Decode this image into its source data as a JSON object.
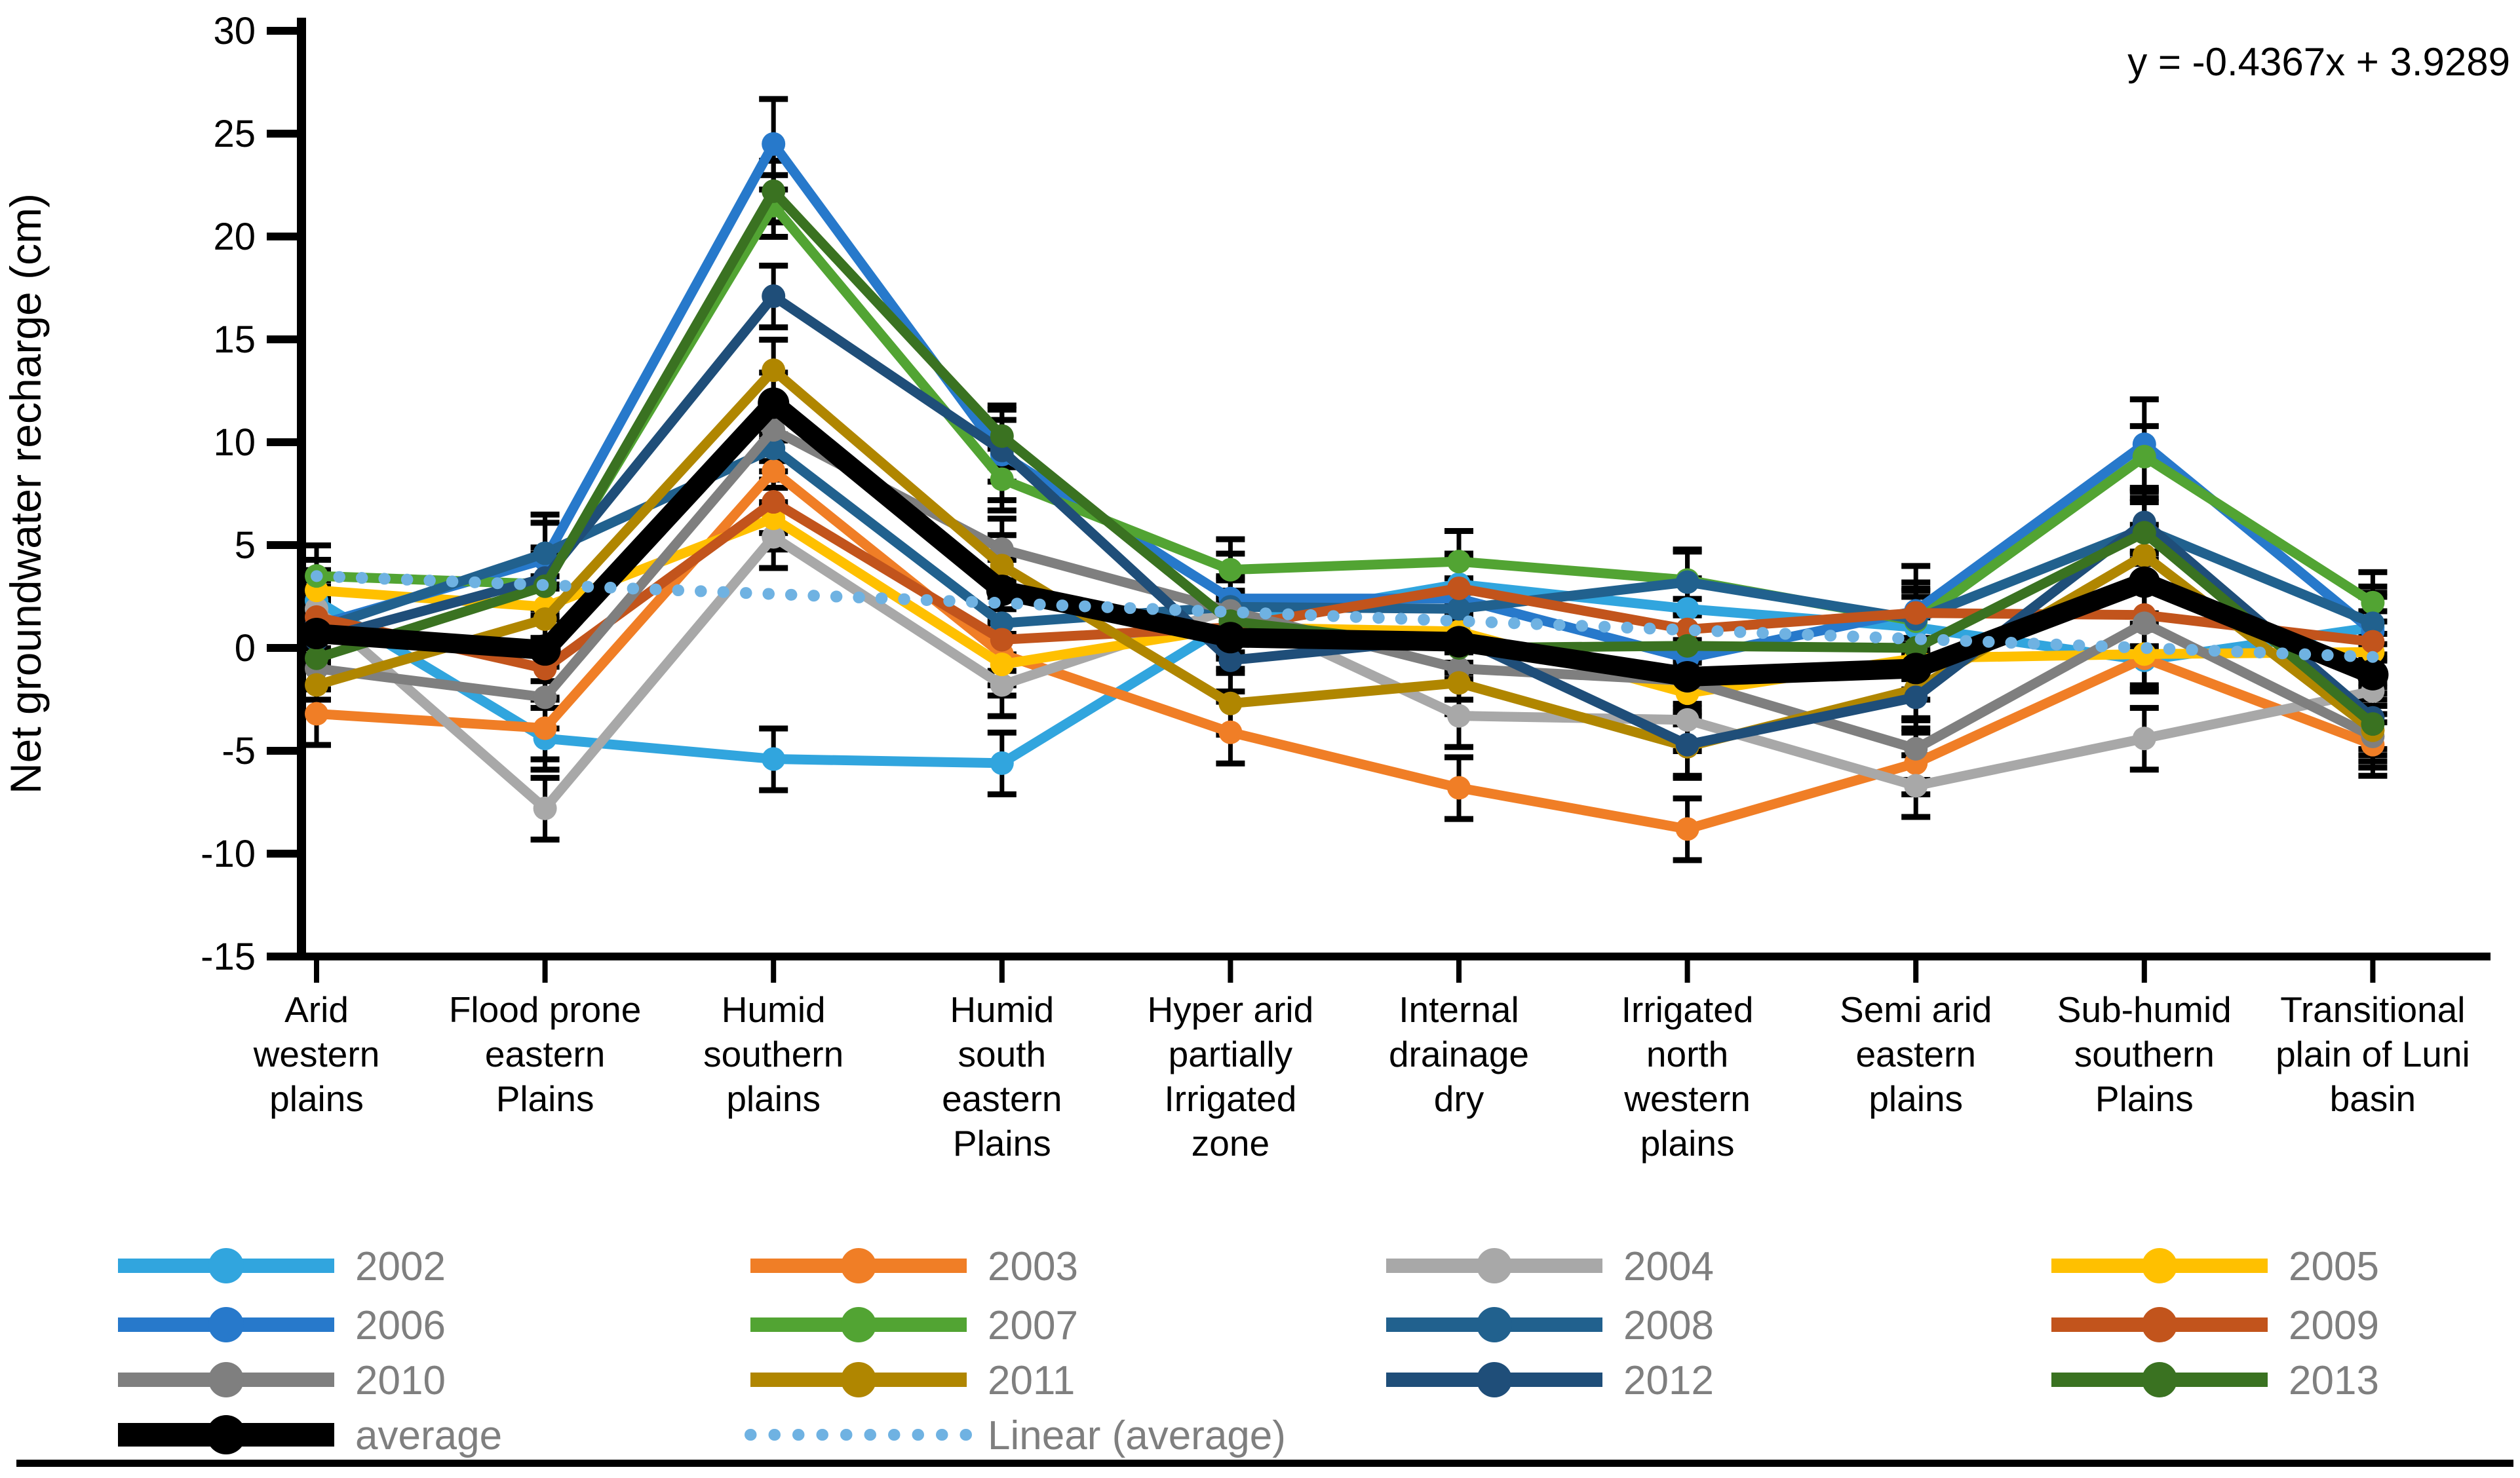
{
  "chart_data": {
    "type": "line",
    "title": "",
    "xlabel": "",
    "ylabel": "Net groundwater recharge (cm)",
    "ylim": [
      -15,
      30
    ],
    "ytick_step": 5,
    "ytick_labels": [
      "30",
      "25",
      "20",
      "15",
      "10",
      "5",
      "0",
      "-5",
      "-10",
      "-15"
    ],
    "grid": false,
    "legend_position": "bottom",
    "annotation": "y = -0.4367x + 3.9289",
    "categories": [
      "Arid western plains",
      "Flood prone eastern Plains",
      "Humid southern plains",
      "Humid south eastern Plains",
      "Hyper arid partially Irrigated zone",
      "Internal drainage dry",
      "Irrigated north western plains",
      "Semi arid eastern plains",
      "Sub-humid southern Plains",
      "Transitional plain of Luni basin"
    ],
    "category_label_lines": [
      [
        "Arid",
        "western",
        "plains"
      ],
      [
        "Flood prone",
        "eastern",
        "Plains"
      ],
      [
        "Humid",
        "southern",
        "plains"
      ],
      [
        "Humid",
        "south",
        "eastern",
        "Plains"
      ],
      [
        "Hyper arid",
        "partially",
        "Irrigated",
        "zone"
      ],
      [
        "Internal",
        "drainage",
        "dry"
      ],
      [
        "Irrigated",
        "north",
        "western",
        "plains"
      ],
      [
        "Semi arid",
        "eastern",
        "plains"
      ],
      [
        "Sub-humid",
        "southern",
        "Plains"
      ],
      [
        "Transitional",
        "plain of Luni",
        "basin"
      ]
    ],
    "series": [
      {
        "name": "2002",
        "color": "#31A5DE",
        "err": 1.5,
        "values": [
          2.3,
          -4.4,
          -5.4,
          -5.6,
          1.2,
          3.1,
          1.9,
          1.0,
          -0.6,
          1.0
        ]
      },
      {
        "name": "2003",
        "color": "#F07E26",
        "err": 1.5,
        "values": [
          -3.2,
          -3.9,
          8.6,
          -0.3,
          -4.1,
          -6.8,
          -8.8,
          -5.6,
          -0.5,
          -4.7
        ]
      },
      {
        "name": "2004",
        "color": "#A8A8A8",
        "err": 1.5,
        "values": [
          1.9,
          -7.8,
          5.4,
          -1.8,
          1.9,
          -3.3,
          -3.5,
          -6.7,
          -4.4,
          -2.1
        ]
      },
      {
        "name": "2005",
        "color": "#FFC000",
        "err": 1.5,
        "values": [
          2.8,
          2.0,
          6.3,
          -0.8,
          1.0,
          0.8,
          -2.2,
          -0.5,
          -0.3,
          -0.2
        ]
      },
      {
        "name": "2006",
        "color": "#2779CB",
        "err": 2.2,
        "values": [
          1.1,
          4.3,
          24.5,
          9.4,
          2.4,
          2.4,
          -0.5,
          1.8,
          9.9,
          0.8
        ]
      },
      {
        "name": "2007",
        "color": "#52A433",
        "err": 1.5,
        "values": [
          3.5,
          3.1,
          21.5,
          8.2,
          3.8,
          4.2,
          3.3,
          1.3,
          9.3,
          2.2
        ]
      },
      {
        "name": "2008",
        "color": "#21618E",
        "err": 1.5,
        "values": [
          0.9,
          4.6,
          9.7,
          1.2,
          2.0,
          1.9,
          3.2,
          1.4,
          5.8,
          1.2
        ]
      },
      {
        "name": "2009",
        "color": "#C2541C",
        "err": 1.5,
        "values": [
          1.5,
          -1.0,
          7.1,
          0.4,
          1.0,
          2.9,
          0.9,
          1.7,
          1.6,
          0.3
        ]
      },
      {
        "name": "2010",
        "color": "#7F7F7F",
        "err": 1.5,
        "values": [
          -1.0,
          -2.4,
          10.6,
          4.8,
          1.8,
          -1.0,
          -1.6,
          -4.9,
          1.2,
          -4.3
        ]
      },
      {
        "name": "2011",
        "color": "#B08600",
        "err": 1.5,
        "values": [
          -1.8,
          1.4,
          13.5,
          4.0,
          -2.7,
          -1.7,
          -4.8,
          -2.0,
          4.5,
          -4.0
        ]
      },
      {
        "name": "2012",
        "color": "#1F4E79",
        "err": 1.5,
        "values": [
          0.4,
          3.4,
          17.1,
          9.6,
          -0.6,
          0.5,
          -4.7,
          -2.4,
          6.1,
          -3.4
        ]
      },
      {
        "name": "2013",
        "color": "#3A7221",
        "err": 1.5,
        "values": [
          -0.5,
          3.0,
          22.2,
          10.3,
          1.3,
          0.0,
          0.1,
          0.0,
          5.6,
          -3.7
        ]
      }
    ],
    "average_series": {
      "name": "average",
      "color": "#000000",
      "err": 1.5,
      "values": [
        0.7,
        -0.1,
        11.9,
        2.8,
        0.5,
        0.3,
        -1.4,
        -1.0,
        3.2,
        -1.3
      ]
    },
    "trendline": {
      "name": "Linear (average)",
      "color": "#6FB2E2",
      "slope": -0.4367,
      "intercept": 3.9289,
      "equation": "y = -0.4367x + 3.9289"
    }
  },
  "legend": {
    "rows": [
      [
        "2002",
        "2003",
        "2004",
        "2005"
      ],
      [
        "2006",
        "2007",
        "2008",
        "2009"
      ],
      [
        "2010",
        "2011",
        "2012",
        "2013"
      ],
      [
        "average",
        "Linear (average)"
      ]
    ],
    "text_color": "#7F7F7F"
  }
}
